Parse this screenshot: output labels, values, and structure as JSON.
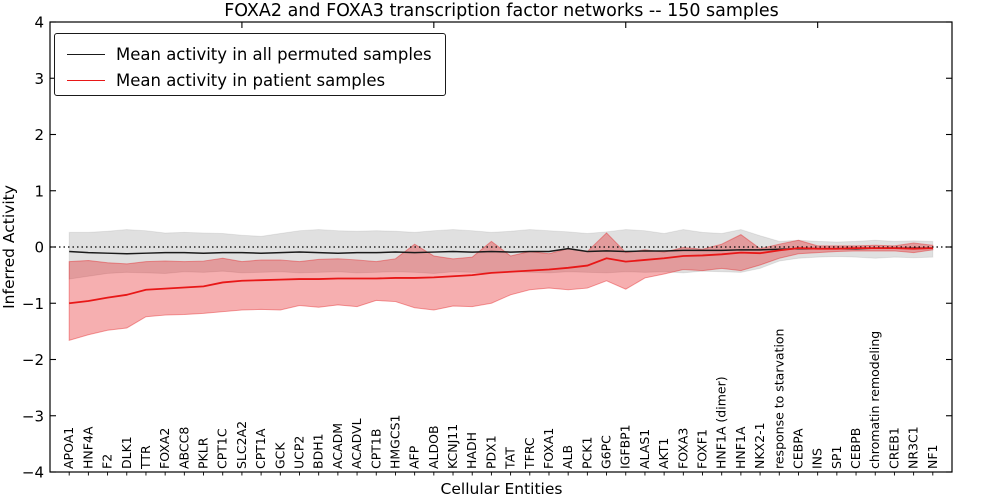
{
  "title": "FOXA2 and FOXA3 transcription factor networks -- 150 samples",
  "axes": {
    "ylabel": "Inferred Activity",
    "xlabel": "Cellular Entities",
    "ytick_labels": [
      "4",
      "3",
      "2",
      "1",
      "0",
      "−1",
      "−2",
      "−3",
      "−4"
    ],
    "ytick_values": [
      4,
      3,
      2,
      1,
      0,
      -1,
      -2,
      -3,
      -4
    ],
    "top_tick_values": [
      10,
      20,
      30,
      40
    ],
    "xlim": [
      0,
      47
    ],
    "ylim": [
      -4,
      4
    ]
  },
  "legend": {
    "entries": [
      {
        "label": "Mean activity in all permuted samples",
        "color": "#1a1a1a"
      },
      {
        "label": "Mean activity in patient samples",
        "color": "#e81717"
      }
    ]
  },
  "colors": {
    "permuted_line": "#1a1a1a",
    "patient_line": "#e81717",
    "permuted_band": "rgba(0,0,0,0.12)",
    "patient_band": "rgba(228,26,28,0.35)",
    "patient_band_edge": "rgba(228,26,28,0.40)",
    "zero_line": "#000000",
    "frame": "#000000"
  },
  "chart_data": {
    "type": "line",
    "title": "FOXA2 and FOXA3 transcription factor networks -- 150 samples",
    "xlabel": "Cellular Entities",
    "ylabel": "Inferred Activity",
    "ylim": [
      -4,
      4
    ],
    "grid": false,
    "zero_line": "dotted",
    "legend_position": "upper left",
    "categories": [
      "APOA1",
      "HNF4A",
      "F2",
      "DLK1",
      "TTR",
      "FOXA2",
      "ABCC8",
      "PKLR",
      "CPT1C",
      "SLC2A2",
      "CPT1A",
      "GCK",
      "UCP2",
      "BDH1",
      "ACADM",
      "ACADVL",
      "CPT1B",
      "HMGCS1",
      "AFP",
      "ALDOB",
      "KCNJ11",
      "HADH",
      "PDX1",
      "TAT",
      "TFRC",
      "FOXA1",
      "ALB",
      "PCK1",
      "G6PC",
      "IGFBP1",
      "ALAS1",
      "AKT1",
      "FOXA3",
      "FOXF1",
      "HNF1A (dimer)",
      "HNF1A",
      "NKX2-1",
      "response to starvation",
      "CEBPA",
      "INS",
      "SP1",
      "CEBPB",
      "chromatin remodeling",
      "CREB1",
      "NR3C1",
      "NF1"
    ],
    "series": [
      {
        "name": "Mean activity in all permuted samples",
        "color": "#1a1a1a",
        "values": [
          -0.08,
          -0.1,
          -0.11,
          -0.12,
          -0.11,
          -0.1,
          -0.1,
          -0.11,
          -0.1,
          -0.1,
          -0.11,
          -0.1,
          -0.09,
          -0.1,
          -0.11,
          -0.1,
          -0.1,
          -0.09,
          -0.1,
          -0.09,
          -0.08,
          -0.09,
          -0.08,
          -0.09,
          -0.08,
          -0.08,
          -0.03,
          -0.08,
          -0.07,
          -0.08,
          -0.07,
          -0.07,
          -0.06,
          -0.06,
          -0.06,
          -0.05,
          -0.05,
          -0.04,
          -0.03,
          -0.03,
          -0.03,
          -0.03,
          -0.02,
          -0.02,
          -0.02,
          -0.02
        ]
      },
      {
        "name": "Mean activity in patient samples",
        "color": "#e81717",
        "values": [
          -1.0,
          -0.96,
          -0.9,
          -0.85,
          -0.76,
          -0.74,
          -0.72,
          -0.7,
          -0.63,
          -0.6,
          -0.59,
          -0.58,
          -0.57,
          -0.57,
          -0.56,
          -0.56,
          -0.56,
          -0.55,
          -0.55,
          -0.54,
          -0.52,
          -0.5,
          -0.46,
          -0.44,
          -0.42,
          -0.4,
          -0.37,
          -0.33,
          -0.2,
          -0.26,
          -0.23,
          -0.2,
          -0.16,
          -0.15,
          -0.13,
          -0.1,
          -0.11,
          -0.06,
          -0.02,
          -0.03,
          -0.03,
          -0.02,
          -0.02,
          -0.02,
          -0.03,
          -0.02
        ]
      }
    ],
    "bands": [
      {
        "name": "permuted samples range",
        "fill": "rgba(0,0,0,0.12)",
        "upper": [
          0.26,
          0.26,
          0.28,
          0.31,
          0.29,
          0.25,
          0.26,
          0.25,
          0.24,
          0.21,
          0.19,
          0.24,
          0.29,
          0.31,
          0.29,
          0.28,
          0.29,
          0.28,
          0.26,
          0.29,
          0.31,
          0.29,
          0.26,
          0.28,
          0.31,
          0.29,
          0.27,
          0.24,
          0.27,
          0.31,
          0.29,
          0.24,
          0.31,
          0.26,
          0.24,
          0.31,
          0.2,
          0.1,
          0.12,
          0.1,
          0.09,
          0.1,
          0.12,
          0.1,
          0.11,
          0.1
        ],
        "lower": [
          -0.57,
          -0.52,
          -0.47,
          -0.45,
          -0.46,
          -0.47,
          -0.44,
          -0.45,
          -0.43,
          -0.46,
          -0.45,
          -0.44,
          -0.46,
          -0.45,
          -0.44,
          -0.46,
          -0.45,
          -0.44,
          -0.45,
          -0.47,
          -0.44,
          -0.45,
          -0.46,
          -0.44,
          -0.45,
          -0.46,
          -0.44,
          -0.45,
          -0.46,
          -0.44,
          -0.45,
          -0.44,
          -0.46,
          -0.43,
          -0.44,
          -0.45,
          -0.38,
          -0.25,
          -0.2,
          -0.18,
          -0.17,
          -0.18,
          -0.2,
          -0.18,
          -0.19,
          -0.18
        ]
      },
      {
        "name": "patient samples range",
        "fill": "rgba(228,26,28,0.35)",
        "upper": [
          -0.26,
          -0.24,
          -0.28,
          -0.3,
          -0.26,
          -0.25,
          -0.26,
          -0.25,
          -0.2,
          -0.26,
          -0.23,
          -0.23,
          -0.26,
          -0.22,
          -0.21,
          -0.23,
          -0.26,
          -0.21,
          0.05,
          -0.16,
          -0.21,
          -0.18,
          0.1,
          -0.16,
          -0.08,
          -0.12,
          -0.03,
          -0.08,
          0.25,
          -0.1,
          -0.05,
          -0.09,
          -0.01,
          -0.04,
          0.05,
          0.22,
          -0.03,
          0.05,
          0.12,
          0.02,
          0.02,
          0.02,
          0.03,
          0.02,
          0.07,
          0.03
        ],
        "lower": [
          -1.66,
          -1.56,
          -1.48,
          -1.44,
          -1.24,
          -1.21,
          -1.2,
          -1.18,
          -1.15,
          -1.12,
          -1.11,
          -1.12,
          -1.04,
          -1.07,
          -1.03,
          -1.06,
          -0.95,
          -0.97,
          -1.08,
          -1.12,
          -1.05,
          -1.06,
          -1.0,
          -0.85,
          -0.76,
          -0.73,
          -0.76,
          -0.73,
          -0.6,
          -0.75,
          -0.55,
          -0.48,
          -0.4,
          -0.42,
          -0.38,
          -0.42,
          -0.32,
          -0.2,
          -0.12,
          -0.1,
          -0.08,
          -0.07,
          -0.07,
          -0.07,
          -0.1,
          -0.05
        ]
      }
    ]
  }
}
